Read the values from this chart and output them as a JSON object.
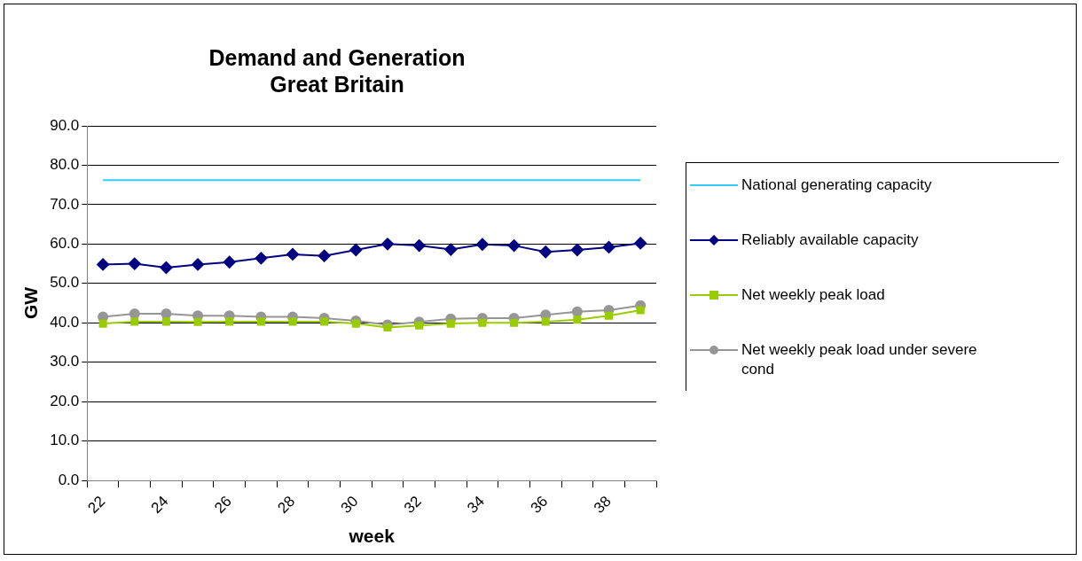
{
  "chart_data": {
    "type": "line",
    "title": "Demand and Generation",
    "subtitle": "Great Britain",
    "xlabel": "week",
    "ylabel": "GW",
    "categories": [
      "22",
      null,
      "24",
      null,
      "26",
      null,
      "28",
      null,
      "30",
      null,
      "32",
      null,
      "34",
      null,
      "36",
      null,
      "38",
      null
    ],
    "series": [
      {
        "name": "National generating capacity",
        "color": "#33ccff",
        "marker": "none",
        "values": [
          76.2,
          76.2,
          76.2,
          76.2,
          76.2,
          76.2,
          76.2,
          76.2,
          76.2,
          76.2,
          76.2,
          76.2,
          76.2,
          76.2,
          76.2,
          76.2,
          76.2,
          76.2
        ]
      },
      {
        "name": "Reliably available capacity",
        "color": "#000080",
        "marker": "diamond",
        "values": [
          54.8,
          55.0,
          54.0,
          54.8,
          55.4,
          56.4,
          57.4,
          57.0,
          58.5,
          60.0,
          59.6,
          58.6,
          59.9,
          59.6,
          58.0,
          58.5,
          59.2,
          60.2
        ]
      },
      {
        "name": "Net weekly peak load",
        "color": "#99cc00",
        "marker": "square",
        "values": [
          39.8,
          40.3,
          40.3,
          40.2,
          40.3,
          40.3,
          40.3,
          40.3,
          39.8,
          38.8,
          39.3,
          39.8,
          40.0,
          40.0,
          40.3,
          40.8,
          41.8,
          43.2
        ]
      },
      {
        "name": "Net weekly peak load under severe cond",
        "color": "#969696",
        "marker": "circle",
        "values": [
          41.5,
          42.3,
          42.3,
          41.8,
          41.8,
          41.5,
          41.5,
          41.2,
          40.5,
          39.5,
          40.2,
          41.0,
          41.2,
          41.2,
          42.0,
          42.8,
          43.2,
          44.4
        ]
      }
    ],
    "ylim": [
      0,
      90
    ],
    "yticks": [
      {
        "value": 0,
        "label": "0.0"
      },
      {
        "value": 10,
        "label": "10.0"
      },
      {
        "value": 20,
        "label": "20.0"
      },
      {
        "value": 30,
        "label": "30.0"
      },
      {
        "value": 40,
        "label": "40.0"
      },
      {
        "value": 50,
        "label": "50.0"
      },
      {
        "value": 60,
        "label": "60.0"
      },
      {
        "value": 70,
        "label": "70.0"
      },
      {
        "value": 80,
        "label": "80.0"
      },
      {
        "value": 90,
        "label": "90.0"
      }
    ],
    "grid": "y",
    "legend": "right"
  }
}
